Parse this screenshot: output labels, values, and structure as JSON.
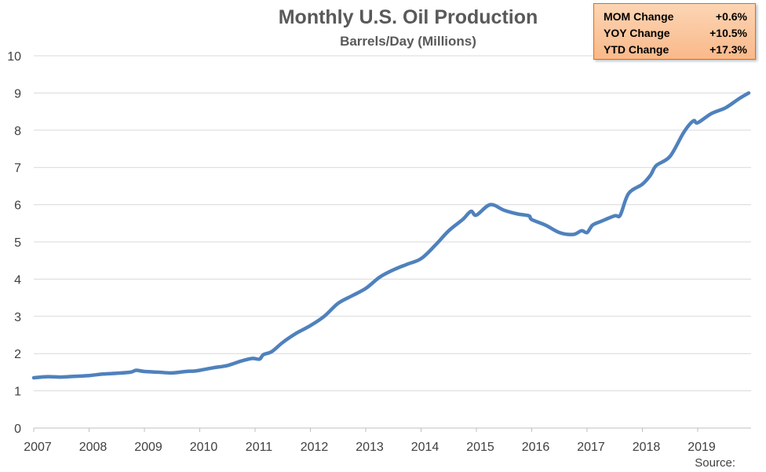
{
  "stats_box": {
    "rows": [
      {
        "label": "MOM Change",
        "value": "+0.6%"
      },
      {
        "label": "YOY Change",
        "value": "+10.5%"
      },
      {
        "label": "YTD Change",
        "value": "+17.3%"
      }
    ]
  },
  "source_label": "Source:",
  "colors": {
    "line": "#4f81bd",
    "box_border": "#e46c0a",
    "box_fill": "#fcd5b4"
  },
  "chart_data": {
    "type": "line",
    "title": "Monthly U.S. Oil Production",
    "subtitle": "Barrels/Day (Millions)",
    "xlabel": "",
    "ylabel": "",
    "ylim": [
      0,
      10
    ],
    "xlim": [
      2007,
      2019.92
    ],
    "yticks": [
      "0",
      "1",
      "2",
      "3",
      "4",
      "5",
      "6",
      "7",
      "8",
      "9",
      "10"
    ],
    "xticks": [
      "2007",
      "2008",
      "2009",
      "2010",
      "2011",
      "2012",
      "2013",
      "2014",
      "2015",
      "2016",
      "2017",
      "2018",
      "2019"
    ],
    "grid": true,
    "legend": "none",
    "series": [
      {
        "x": [
          2007.0,
          2007.25,
          2007.5,
          2007.75,
          2008.0,
          2008.25,
          2008.5,
          2008.75,
          2008.85,
          2009.0,
          2009.25,
          2009.5,
          2009.75,
          2009.9,
          2010.0,
          2010.25,
          2010.5,
          2010.75,
          2010.95,
          2011.08,
          2011.15,
          2011.3,
          2011.5,
          2011.75,
          2012.0,
          2012.25,
          2012.5,
          2012.75,
          2013.0,
          2013.25,
          2013.5,
          2013.75,
          2014.0,
          2014.25,
          2014.5,
          2014.75,
          2014.9,
          2015.0,
          2015.25,
          2015.5,
          2015.75,
          2015.95,
          2016.0,
          2016.25,
          2016.5,
          2016.75,
          2016.9,
          2017.0,
          2017.1,
          2017.25,
          2017.5,
          2017.6,
          2017.75,
          2018.0,
          2018.15,
          2018.25,
          2018.5,
          2018.75,
          2018.92,
          2019.0,
          2019.25,
          2019.5,
          2019.75,
          2019.92
        ],
        "y": [
          1.35,
          1.38,
          1.37,
          1.39,
          1.41,
          1.45,
          1.47,
          1.5,
          1.55,
          1.52,
          1.5,
          1.48,
          1.52,
          1.53,
          1.55,
          1.62,
          1.68,
          1.8,
          1.87,
          1.85,
          1.97,
          2.05,
          2.3,
          2.55,
          2.75,
          3.0,
          3.35,
          3.55,
          3.75,
          4.05,
          4.25,
          4.4,
          4.55,
          4.9,
          5.3,
          5.6,
          5.82,
          5.72,
          6.0,
          5.85,
          5.75,
          5.7,
          5.6,
          5.45,
          5.25,
          5.2,
          5.3,
          5.25,
          5.45,
          5.55,
          5.7,
          5.72,
          6.3,
          6.55,
          6.8,
          7.05,
          7.3,
          7.95,
          8.25,
          8.2,
          8.45,
          8.6,
          8.85,
          9.0
        ]
      }
    ]
  }
}
